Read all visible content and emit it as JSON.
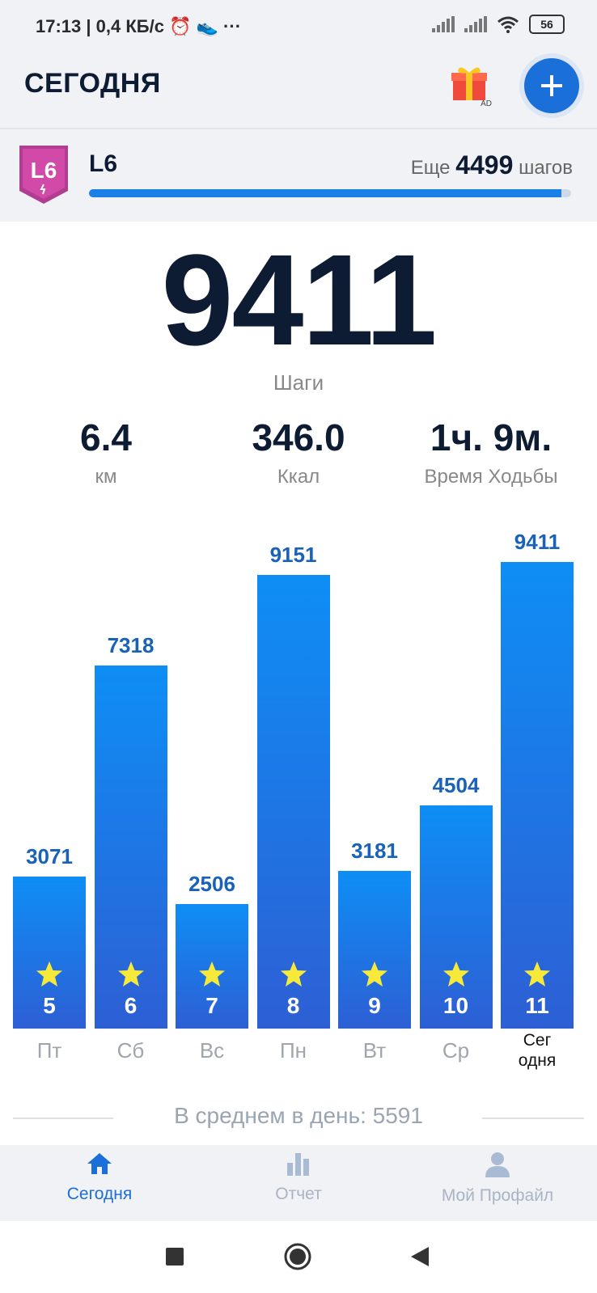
{
  "status_bar": {
    "time": "17:13 | 0,4 КБ/с ⏰ 👟 ···",
    "battery": "56"
  },
  "header": {
    "title": "СЕГОДНЯ",
    "gift_ad": "AD",
    "add_icon": "plus-icon"
  },
  "level": {
    "badge": "L6",
    "name": "L6",
    "remaining_prefix": "Еще",
    "remaining_value": "4499",
    "remaining_suffix": "шагов",
    "progress": 0.98
  },
  "today": {
    "steps": "9411",
    "steps_label": "Шаги"
  },
  "stats": [
    {
      "value": "6.4",
      "label": "км"
    },
    {
      "value": "346.0",
      "label": "Ккал"
    },
    {
      "value": "1ч. 9м.",
      "label": "Время Ходьбы"
    }
  ],
  "chart_data": {
    "type": "bar",
    "categories": [
      "Пт",
      "Сб",
      "Вс",
      "Пн",
      "Вт",
      "Ср",
      "Сег одня"
    ],
    "values": [
      3071,
      7318,
      2506,
      9151,
      3181,
      4504,
      9411
    ],
    "day_numbers": [
      "5",
      "6",
      "7",
      "8",
      "9",
      "10",
      "11"
    ],
    "ylim": [
      0,
      10600
    ]
  },
  "average": "В среднем в день: 5591",
  "nav": [
    {
      "label": "Сегодня",
      "icon": "home-icon",
      "active": true
    },
    {
      "label": "Отчет",
      "icon": "bar-chart-icon",
      "active": false
    },
    {
      "label": "Мой Профайл",
      "icon": "profile-icon",
      "active": false
    }
  ],
  "colors": {
    "accent": "#1a6fd8",
    "bar_top": "#0e8ef5",
    "bar_bottom": "#2d5fd4",
    "star": "#f7e93a"
  }
}
